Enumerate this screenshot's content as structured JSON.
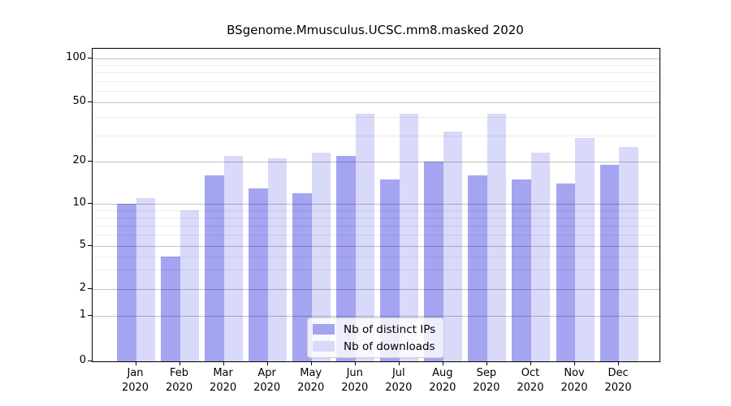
{
  "chart_data": {
    "type": "bar",
    "title": "BSgenome.Mmusculus.UCSC.mm8.masked 2020",
    "categories": [
      "Jan",
      "Feb",
      "Mar",
      "Apr",
      "May",
      "Jun",
      "Jul",
      "Aug",
      "Sep",
      "Oct",
      "Nov",
      "Dec"
    ],
    "category_year": "2020",
    "series": [
      {
        "name": "Nb of distinct IPs",
        "color": "#a4a4f1",
        "values": [
          10,
          4,
          16,
          13,
          12,
          22,
          15,
          20,
          16,
          15,
          14,
          19
        ]
      },
      {
        "name": "Nb of downloads",
        "color": "#d9d9f9",
        "values": [
          11,
          9,
          22,
          21,
          23,
          42,
          42,
          32,
          42,
          23,
          29,
          25
        ]
      }
    ],
    "xlabel": "",
    "ylabel": "",
    "y_axis": {
      "scale": "log-like (0,1,2,5,10,20,50,100)",
      "tick_values": [
        0,
        1,
        2,
        5,
        10,
        20,
        50,
        100
      ],
      "tick_labels": [
        "0",
        "1",
        "2",
        "5",
        "10",
        "20",
        "50",
        "100"
      ],
      "minor_gridline_values": [
        3,
        4,
        6,
        7,
        8,
        9,
        30,
        40,
        60,
        70,
        80,
        90
      ],
      "ylim": [
        0,
        115
      ]
    },
    "grid": true,
    "legend": {
      "position": "bottom-center",
      "entries": [
        "Nb of distinct IPs",
        "Nb of downloads"
      ]
    }
  },
  "colors": {
    "bar_distinct_ips": "#a4a4f1",
    "bar_downloads": "#d9d9f9",
    "grid_major": "rgba(0,0,0,0.24)",
    "grid_minor": "rgba(0,0,0,0.07)",
    "axis": "#000000",
    "text": "#000000",
    "legend_border": "#cccccc",
    "background": "#ffffff"
  }
}
